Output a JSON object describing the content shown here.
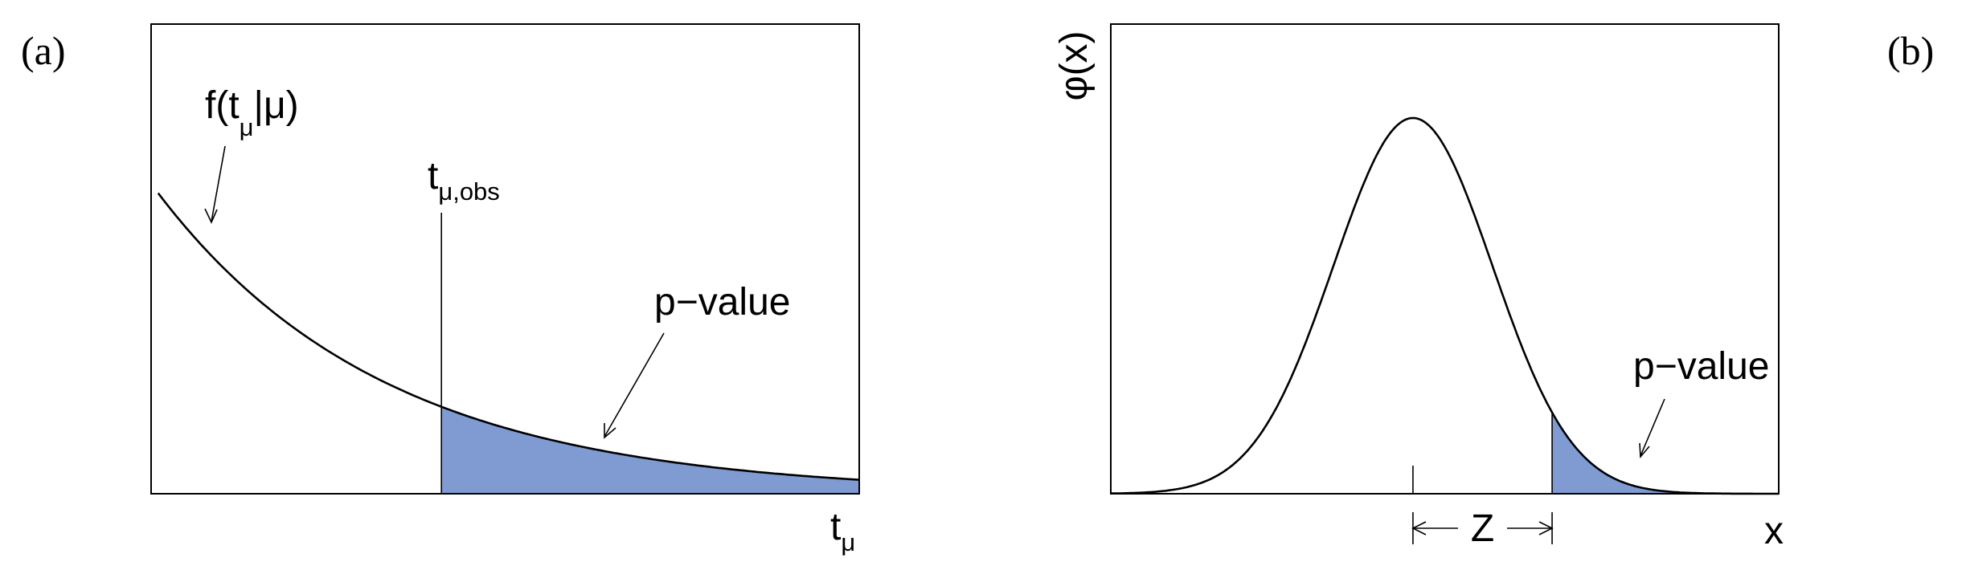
{
  "panels": {
    "a": {
      "tag": "(a)",
      "curve_label": {
        "main": "f(t",
        "sub": "μ",
        "tail": "|μ)"
      },
      "obs_label": {
        "main": "t",
        "sub": "μ,obs"
      },
      "pvalue_label": "p−value",
      "x_label": {
        "main": "t",
        "sub": "μ"
      }
    },
    "b": {
      "tag": "(b)",
      "y_label": "φ(x)",
      "x_label": "x",
      "z_label": "Z",
      "pvalue_label": "p−value"
    }
  },
  "colors": {
    "shade": "#7f9bd1",
    "line": "#000000"
  },
  "chart_data": [
    {
      "type": "line",
      "panel": "a",
      "description_of_shape": "exponential decay",
      "xlim": [
        0,
        1
      ],
      "ylim": [
        0,
        1
      ],
      "decay_rate": 3.1,
      "curve_start_x": 0.01,
      "curve_start_y": 0.64,
      "observed_x": 0.41,
      "shaded_region": "x >= observed_x",
      "shade_color": "#7f9bd1"
    },
    {
      "type": "line",
      "panel": "b",
      "description_of_shape": "standard normal density",
      "xlim": [
        -3.8,
        4.6
      ],
      "peak_height_fraction": 0.8,
      "mean": 0,
      "z": 1.75,
      "shaded_region": "x >= z",
      "shade_color": "#7f9bd1"
    }
  ]
}
